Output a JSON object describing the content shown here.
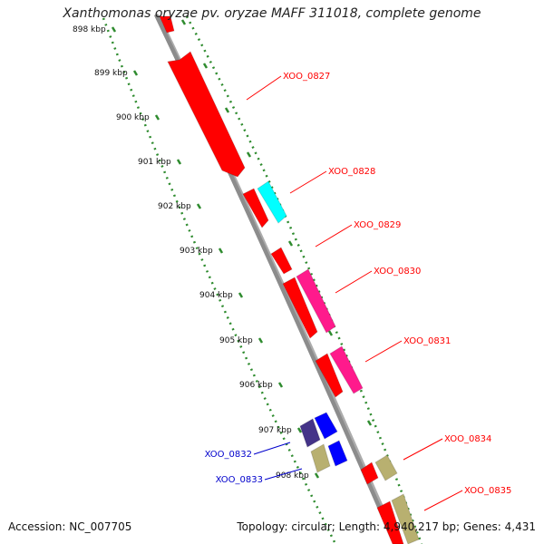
{
  "title": "Xanthomonas oryzae pv. oryzae MAFF 311018, complete genome",
  "accession": "Accession: NC_007705",
  "topology": "Topology: circular; Length: 4,940,217 bp; Genes: 4,431",
  "tick_labels": [
    "898 kbp",
    "899 kbp",
    "900 kbp",
    "901 kbp",
    "902 kbp",
    "903 kbp",
    "904 kbp",
    "905 kbp",
    "906 kbp",
    "907 kbp",
    "908 kbp"
  ],
  "genes": [
    {
      "name": "XOO_0827",
      "strand": "forward",
      "color": "#ff0000",
      "label_color": "#ff0000"
    },
    {
      "name": "XOO_0828",
      "strand": "forward",
      "color": "#00ffff",
      "label_color": "#ff0000"
    },
    {
      "name": "XOO_0829",
      "strand": "forward",
      "color": "#ff0000",
      "label_color": "#ff0000"
    },
    {
      "name": "XOO_0830",
      "strand": "forward",
      "color": "#ff1a8c",
      "label_color": "#ff0000"
    },
    {
      "name": "XOO_0831",
      "strand": "forward",
      "color": "#ff1a8c",
      "label_color": "#ff0000"
    },
    {
      "name": "XOO_0832",
      "strand": "reverse",
      "color": "#443388",
      "label_color": "#0000cc"
    },
    {
      "name": "XOO_0833",
      "strand": "reverse",
      "color": "#b8b070",
      "label_color": "#0000cc"
    },
    {
      "name": "XOO_0834",
      "strand": "forward",
      "color": "#b8b070",
      "label_color": "#ff0000"
    },
    {
      "name": "XOO_0835",
      "strand": "forward",
      "color": "#b8b070",
      "label_color": "#ff0000"
    }
  ],
  "colors": {
    "backbone": "#8c8c8c",
    "tick_dots": "#2e8b2e",
    "forward_label": "#ff0000",
    "reverse_label": "#0000cc"
  }
}
